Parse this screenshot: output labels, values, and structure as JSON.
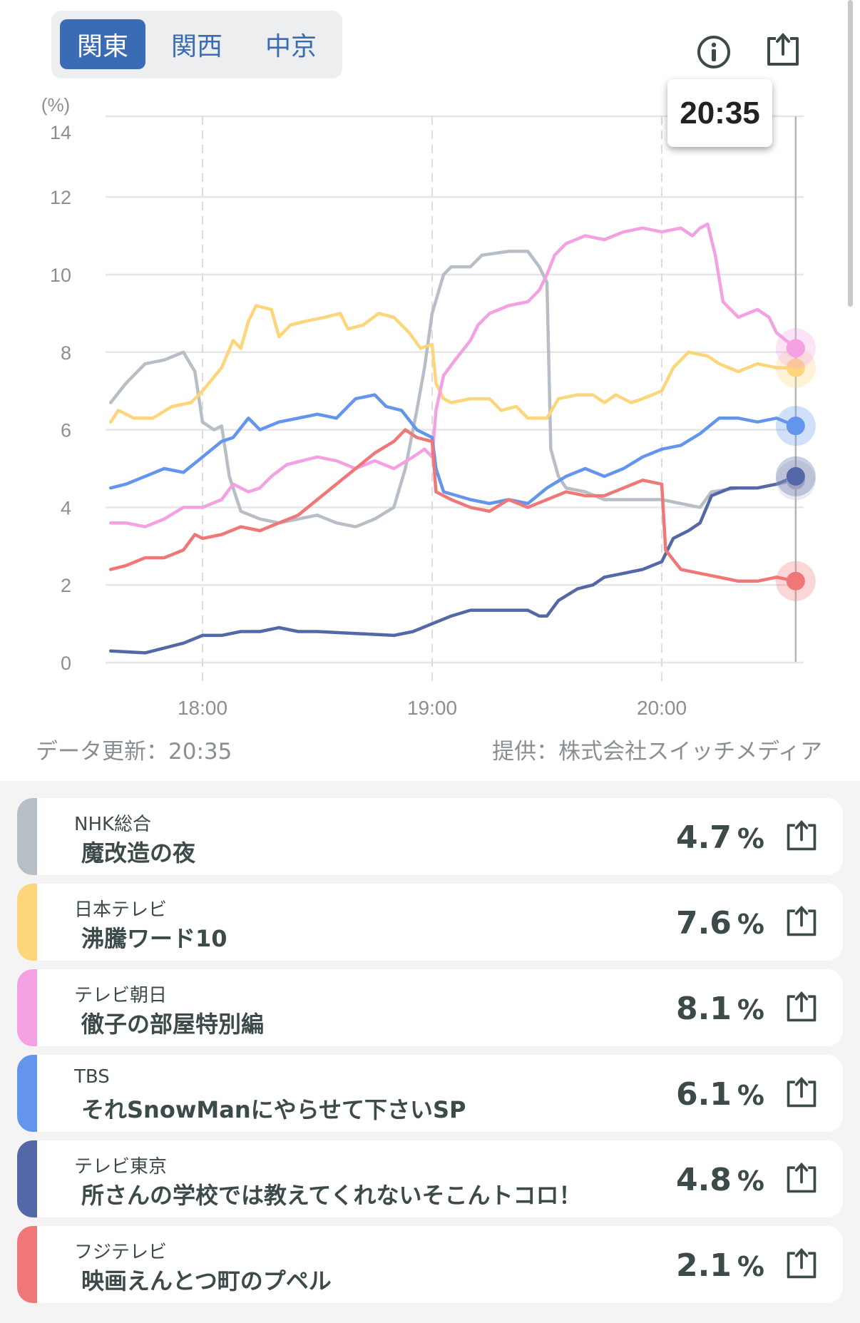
{
  "tabs": [
    {
      "label": "関東",
      "active": true
    },
    {
      "label": "関西",
      "active": false
    },
    {
      "label": "中京",
      "active": false
    }
  ],
  "icons": {
    "info": "info-circle-icon",
    "share": "share-icon"
  },
  "tooltip_time": "20:35",
  "footer": {
    "updated": "データ更新：20:35",
    "provider": "提供：株式会社スイッチメディア"
  },
  "chart_data": {
    "type": "line",
    "ylabel": "(%)",
    "ylim": [
      0,
      14
    ],
    "yticks": [
      "0",
      "2",
      "4",
      "6",
      "8",
      "10",
      "12",
      "14"
    ],
    "xrange": [
      "17:36",
      "20:35"
    ],
    "xticks": [
      "18:00",
      "19:00",
      "20:00"
    ],
    "grid": true,
    "cursor_time": "20:35",
    "series": [
      {
        "name": "NHK総合",
        "color": "#b8bec6",
        "points": [
          [
            "17:36",
            6.7
          ],
          [
            "17:40",
            7.2
          ],
          [
            "17:45",
            7.7
          ],
          [
            "17:50",
            7.8
          ],
          [
            "17:55",
            8.0
          ],
          [
            "17:58",
            7.5
          ],
          [
            "18:00",
            6.2
          ],
          [
            "18:03",
            6.0
          ],
          [
            "18:05",
            6.1
          ],
          [
            "18:07",
            4.8
          ],
          [
            "18:10",
            3.9
          ],
          [
            "18:15",
            3.7
          ],
          [
            "18:20",
            3.6
          ],
          [
            "18:25",
            3.7
          ],
          [
            "18:30",
            3.8
          ],
          [
            "18:35",
            3.6
          ],
          [
            "18:40",
            3.5
          ],
          [
            "18:45",
            3.7
          ],
          [
            "18:50",
            4.0
          ],
          [
            "18:53",
            5.0
          ],
          [
            "18:56",
            6.5
          ],
          [
            "18:58",
            7.6
          ],
          [
            "19:00",
            9.0
          ],
          [
            "19:03",
            10.0
          ],
          [
            "19:05",
            10.2
          ],
          [
            "19:10",
            10.2
          ],
          [
            "19:13",
            10.5
          ],
          [
            "19:20",
            10.6
          ],
          [
            "19:25",
            10.6
          ],
          [
            "19:28",
            10.2
          ],
          [
            "19:30",
            9.8
          ],
          [
            "19:31",
            5.5
          ],
          [
            "19:33",
            4.8
          ],
          [
            "19:35",
            4.5
          ],
          [
            "19:40",
            4.4
          ],
          [
            "19:45",
            4.2
          ],
          [
            "19:50",
            4.2
          ],
          [
            "19:55",
            4.2
          ],
          [
            "20:00",
            4.2
          ],
          [
            "20:05",
            4.1
          ],
          [
            "20:10",
            4.0
          ],
          [
            "20:13",
            4.4
          ],
          [
            "20:20",
            4.5
          ],
          [
            "20:25",
            4.5
          ],
          [
            "20:30",
            4.6
          ],
          [
            "20:35",
            4.7
          ]
        ]
      },
      {
        "name": "日本テレビ",
        "color": "#fdd57a",
        "points": [
          [
            "17:36",
            6.2
          ],
          [
            "17:38",
            6.5
          ],
          [
            "17:42",
            6.3
          ],
          [
            "17:47",
            6.3
          ],
          [
            "17:52",
            6.6
          ],
          [
            "17:57",
            6.7
          ],
          [
            "18:00",
            7.0
          ],
          [
            "18:05",
            7.6
          ],
          [
            "18:08",
            8.3
          ],
          [
            "18:10",
            8.1
          ],
          [
            "18:12",
            8.8
          ],
          [
            "18:14",
            9.2
          ],
          [
            "18:18",
            9.1
          ],
          [
            "18:20",
            8.4
          ],
          [
            "18:23",
            8.7
          ],
          [
            "18:27",
            8.8
          ],
          [
            "18:32",
            8.9
          ],
          [
            "18:36",
            9.0
          ],
          [
            "18:38",
            8.6
          ],
          [
            "18:42",
            8.7
          ],
          [
            "18:46",
            9.0
          ],
          [
            "18:50",
            8.9
          ],
          [
            "18:54",
            8.5
          ],
          [
            "18:57",
            8.1
          ],
          [
            "19:00",
            8.2
          ],
          [
            "19:01",
            7.2
          ],
          [
            "19:03",
            6.8
          ],
          [
            "19:05",
            6.7
          ],
          [
            "19:10",
            6.8
          ],
          [
            "19:15",
            6.8
          ],
          [
            "19:18",
            6.5
          ],
          [
            "19:22",
            6.6
          ],
          [
            "19:25",
            6.3
          ],
          [
            "19:30",
            6.3
          ],
          [
            "19:33",
            6.8
          ],
          [
            "19:38",
            6.9
          ],
          [
            "19:42",
            6.9
          ],
          [
            "19:45",
            6.7
          ],
          [
            "19:48",
            6.9
          ],
          [
            "19:52",
            6.7
          ],
          [
            "19:55",
            6.8
          ],
          [
            "20:00",
            7.0
          ],
          [
            "20:03",
            7.6
          ],
          [
            "20:07",
            8.0
          ],
          [
            "20:12",
            7.9
          ],
          [
            "20:15",
            7.7
          ],
          [
            "20:20",
            7.5
          ],
          [
            "20:25",
            7.7
          ],
          [
            "20:30",
            7.6
          ],
          [
            "20:35",
            7.6
          ]
        ]
      },
      {
        "name": "テレビ朝日",
        "color": "#f4a1e4",
        "points": [
          [
            "17:36",
            3.6
          ],
          [
            "17:40",
            3.6
          ],
          [
            "17:45",
            3.5
          ],
          [
            "17:50",
            3.7
          ],
          [
            "17:55",
            4.0
          ],
          [
            "18:00",
            4.0
          ],
          [
            "18:05",
            4.2
          ],
          [
            "18:08",
            4.6
          ],
          [
            "18:12",
            4.4
          ],
          [
            "18:15",
            4.5
          ],
          [
            "18:18",
            4.8
          ],
          [
            "18:22",
            5.1
          ],
          [
            "18:26",
            5.2
          ],
          [
            "18:30",
            5.3
          ],
          [
            "18:35",
            5.2
          ],
          [
            "18:40",
            5.0
          ],
          [
            "18:45",
            5.2
          ],
          [
            "18:50",
            5.0
          ],
          [
            "18:55",
            5.3
          ],
          [
            "18:58",
            5.5
          ],
          [
            "19:00",
            5.3
          ],
          [
            "19:01",
            6.5
          ],
          [
            "19:03",
            7.4
          ],
          [
            "19:06",
            7.8
          ],
          [
            "19:10",
            8.3
          ],
          [
            "19:12",
            8.7
          ],
          [
            "19:15",
            9.0
          ],
          [
            "19:20",
            9.2
          ],
          [
            "19:25",
            9.3
          ],
          [
            "19:28",
            9.6
          ],
          [
            "19:30",
            10.0
          ],
          [
            "19:32",
            10.5
          ],
          [
            "19:35",
            10.8
          ],
          [
            "19:40",
            11.0
          ],
          [
            "19:45",
            10.9
          ],
          [
            "19:50",
            11.1
          ],
          [
            "19:55",
            11.2
          ],
          [
            "20:00",
            11.1
          ],
          [
            "20:05",
            11.2
          ],
          [
            "20:08",
            11.0
          ],
          [
            "20:10",
            11.2
          ],
          [
            "20:12",
            11.3
          ],
          [
            "20:14",
            10.5
          ],
          [
            "20:16",
            9.3
          ],
          [
            "20:20",
            8.9
          ],
          [
            "20:25",
            9.1
          ],
          [
            "20:28",
            8.9
          ],
          [
            "20:30",
            8.5
          ],
          [
            "20:35",
            8.1
          ]
        ]
      },
      {
        "name": "TBS",
        "color": "#6495ed",
        "points": [
          [
            "17:36",
            4.5
          ],
          [
            "17:40",
            4.6
          ],
          [
            "17:45",
            4.8
          ],
          [
            "17:50",
            5.0
          ],
          [
            "17:55",
            4.9
          ],
          [
            "18:00",
            5.3
          ],
          [
            "18:05",
            5.7
          ],
          [
            "18:08",
            5.8
          ],
          [
            "18:12",
            6.3
          ],
          [
            "18:15",
            6.0
          ],
          [
            "18:20",
            6.2
          ],
          [
            "18:25",
            6.3
          ],
          [
            "18:30",
            6.4
          ],
          [
            "18:35",
            6.3
          ],
          [
            "18:40",
            6.8
          ],
          [
            "18:45",
            6.9
          ],
          [
            "18:48",
            6.6
          ],
          [
            "18:52",
            6.5
          ],
          [
            "18:56",
            6.0
          ],
          [
            "19:00",
            5.8
          ],
          [
            "19:01",
            5.0
          ],
          [
            "19:03",
            4.4
          ],
          [
            "19:10",
            4.2
          ],
          [
            "19:15",
            4.1
          ],
          [
            "19:20",
            4.2
          ],
          [
            "19:25",
            4.1
          ],
          [
            "19:30",
            4.5
          ],
          [
            "19:35",
            4.8
          ],
          [
            "19:40",
            5.0
          ],
          [
            "19:45",
            4.8
          ],
          [
            "19:50",
            5.0
          ],
          [
            "19:55",
            5.3
          ],
          [
            "20:00",
            5.5
          ],
          [
            "20:05",
            5.6
          ],
          [
            "20:10",
            5.9
          ],
          [
            "20:15",
            6.3
          ],
          [
            "20:20",
            6.3
          ],
          [
            "20:25",
            6.2
          ],
          [
            "20:30",
            6.3
          ],
          [
            "20:35",
            6.1
          ]
        ]
      },
      {
        "name": "テレビ東京",
        "color": "#5468a8",
        "points": [
          [
            "17:36",
            0.3
          ],
          [
            "17:45",
            0.25
          ],
          [
            "17:55",
            0.5
          ],
          [
            "18:00",
            0.7
          ],
          [
            "18:05",
            0.7
          ],
          [
            "18:10",
            0.8
          ],
          [
            "18:15",
            0.8
          ],
          [
            "18:20",
            0.9
          ],
          [
            "18:25",
            0.8
          ],
          [
            "18:30",
            0.8
          ],
          [
            "18:40",
            0.75
          ],
          [
            "18:50",
            0.7
          ],
          [
            "18:55",
            0.8
          ],
          [
            "19:00",
            1.0
          ],
          [
            "19:05",
            1.2
          ],
          [
            "19:10",
            1.35
          ],
          [
            "19:15",
            1.35
          ],
          [
            "19:20",
            1.35
          ],
          [
            "19:25",
            1.35
          ],
          [
            "19:28",
            1.2
          ],
          [
            "19:30",
            1.2
          ],
          [
            "19:33",
            1.6
          ],
          [
            "19:38",
            1.9
          ],
          [
            "19:42",
            2.0
          ],
          [
            "19:45",
            2.2
          ],
          [
            "19:50",
            2.3
          ],
          [
            "19:55",
            2.4
          ],
          [
            "20:00",
            2.6
          ],
          [
            "20:03",
            3.2
          ],
          [
            "20:07",
            3.4
          ],
          [
            "20:10",
            3.6
          ],
          [
            "20:13",
            4.3
          ],
          [
            "20:18",
            4.5
          ],
          [
            "20:25",
            4.5
          ],
          [
            "20:30",
            4.6
          ],
          [
            "20:35",
            4.8
          ]
        ]
      },
      {
        "name": "フジテレビ",
        "color": "#f07777",
        "points": [
          [
            "17:36",
            2.4
          ],
          [
            "17:40",
            2.5
          ],
          [
            "17:45",
            2.7
          ],
          [
            "17:50",
            2.7
          ],
          [
            "17:55",
            2.9
          ],
          [
            "17:58",
            3.3
          ],
          [
            "18:00",
            3.2
          ],
          [
            "18:05",
            3.3
          ],
          [
            "18:10",
            3.5
          ],
          [
            "18:15",
            3.4
          ],
          [
            "18:20",
            3.6
          ],
          [
            "18:25",
            3.8
          ],
          [
            "18:30",
            4.2
          ],
          [
            "18:35",
            4.6
          ],
          [
            "18:40",
            5.0
          ],
          [
            "18:45",
            5.4
          ],
          [
            "18:50",
            5.7
          ],
          [
            "18:53",
            6.0
          ],
          [
            "18:56",
            5.8
          ],
          [
            "19:00",
            5.7
          ],
          [
            "19:01",
            4.4
          ],
          [
            "19:05",
            4.2
          ],
          [
            "19:10",
            4.0
          ],
          [
            "19:15",
            3.9
          ],
          [
            "19:20",
            4.2
          ],
          [
            "19:25",
            4.0
          ],
          [
            "19:30",
            4.2
          ],
          [
            "19:35",
            4.4
          ],
          [
            "19:40",
            4.3
          ],
          [
            "19:45",
            4.3
          ],
          [
            "19:50",
            4.5
          ],
          [
            "19:55",
            4.7
          ],
          [
            "20:00",
            4.6
          ],
          [
            "20:01",
            2.9
          ],
          [
            "20:05",
            2.4
          ],
          [
            "20:10",
            2.3
          ],
          [
            "20:15",
            2.2
          ],
          [
            "20:20",
            2.1
          ],
          [
            "20:25",
            2.1
          ],
          [
            "20:30",
            2.2
          ],
          [
            "20:35",
            2.1
          ]
        ]
      }
    ]
  },
  "channels": [
    {
      "channel": "NHK総合",
      "program": "魔改造の夜",
      "rating": "4.7",
      "unit": "%",
      "color": "#b8bec6"
    },
    {
      "channel": "日本テレビ",
      "program": "沸騰ワード10",
      "rating": "7.6",
      "unit": "%",
      "color": "#fdd57a"
    },
    {
      "channel": "テレビ朝日",
      "program": "徹子の部屋特別編",
      "rating": "8.1",
      "unit": "%",
      "color": "#f4a1e4"
    },
    {
      "channel": "TBS",
      "program": "それSnowManにやらせて下さいSP",
      "rating": "6.1",
      "unit": "%",
      "color": "#6495ed"
    },
    {
      "channel": "テレビ東京",
      "program": "所さんの学校では教えてくれないそこんトコロ！",
      "rating": "4.8",
      "unit": "%",
      "color": "#5468a8"
    },
    {
      "channel": "フジテレビ",
      "program": "映画えんとつ町のプペル",
      "rating": "2.1",
      "unit": "%",
      "color": "#f07777"
    }
  ]
}
